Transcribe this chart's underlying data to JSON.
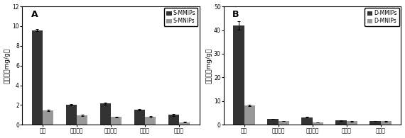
{
  "panel_A": {
    "label": "A",
    "categories": [
      "箍酔",
      "丙酸箍酔",
      "甲基箍酔",
      "雄二酵",
      "黄体酔"
    ],
    "series1_label": "S-MMIPs",
    "series2_label": "S-MNIPs",
    "series1_values": [
      9.6,
      2.05,
      2.15,
      1.55,
      1.0
    ],
    "series2_values": [
      1.45,
      0.95,
      0.78,
      0.8,
      0.25
    ],
    "series1_errors": [
      0.12,
      0.08,
      0.12,
      0.06,
      0.1
    ],
    "series2_errors": [
      0.08,
      0.06,
      0.05,
      0.05,
      0.05
    ],
    "ylim": [
      0,
      12
    ],
    "yticks": [
      0,
      2,
      4,
      6,
      8,
      10,
      12
    ],
    "ylabel": "吸附量（mg/g）",
    "series1_color": "#333333",
    "series2_color": "#999999"
  },
  "panel_B": {
    "label": "B",
    "categories": [
      "箍酔",
      "丙酸箍酔",
      "甲基箍酔",
      "雄二酵",
      "黄体酔"
    ],
    "series1_label": "D-MMIPs",
    "series2_label": "D-MNIPs",
    "series1_values": [
      42.0,
      2.5,
      3.2,
      1.8,
      1.6
    ],
    "series2_values": [
      8.2,
      1.6,
      1.0,
      1.5,
      1.5
    ],
    "series1_errors": [
      1.8,
      0.12,
      0.15,
      0.1,
      0.1
    ],
    "series2_errors": [
      0.25,
      0.1,
      0.08,
      0.08,
      0.08
    ],
    "ylim": [
      0,
      50
    ],
    "yticks": [
      0,
      10,
      20,
      30,
      40,
      50
    ],
    "ylabel": "吸附量（mg/g）",
    "series1_color": "#333333",
    "series2_color": "#999999"
  },
  "bar_width": 0.32,
  "figsize": [
    5.7,
    1.95
  ],
  "dpi": 100,
  "tick_fontsize": 5.5,
  "label_fontsize": 6.5,
  "legend_fontsize": 5.5,
  "panel_label_fontsize": 9
}
